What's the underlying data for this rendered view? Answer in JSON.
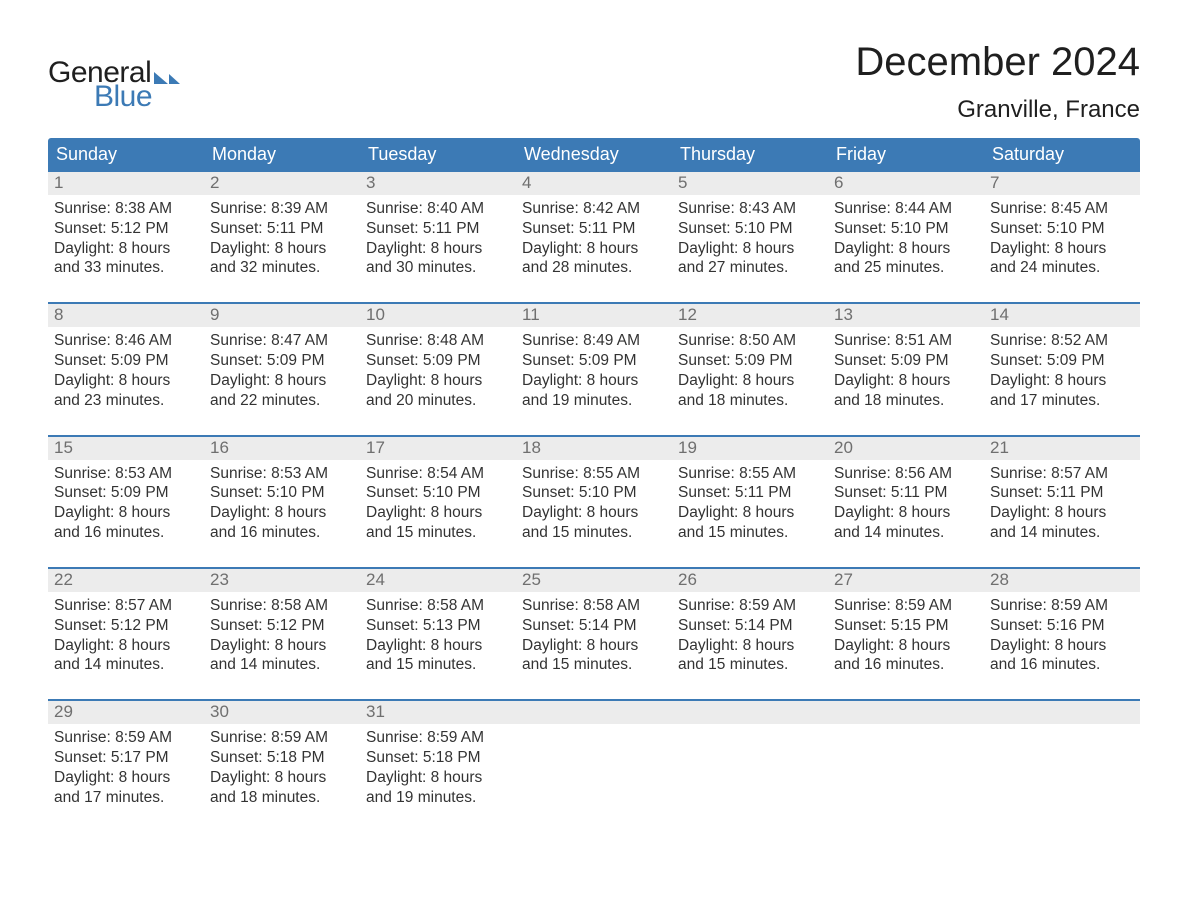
{
  "logo": {
    "text_general": "General",
    "text_blue": "Blue"
  },
  "title": "December 2024",
  "location": "Granville, France",
  "colors": {
    "header_bg": "#3c7ab5",
    "header_text": "#ffffff",
    "daynum_bg": "#ececec",
    "daynum_text": "#6f6f6f",
    "body_text": "#333333",
    "week_border": "#3c7ab5",
    "page_bg": "#ffffff",
    "logo_blue": "#3c7ab5",
    "logo_dark": "#1f1f1f"
  },
  "typography": {
    "title_fontsize": 40,
    "location_fontsize": 24,
    "dayhead_fontsize": 18,
    "daynum_fontsize": 17,
    "body_fontsize": 15.5,
    "logo_fontsize": 30,
    "font_family": "Arial"
  },
  "day_headers": [
    "Sunday",
    "Monday",
    "Tuesday",
    "Wednesday",
    "Thursday",
    "Friday",
    "Saturday"
  ],
  "weeks": [
    [
      {
        "n": "1",
        "sunrise": "Sunrise: 8:38 AM",
        "sunset": "Sunset: 5:12 PM",
        "d1": "Daylight: 8 hours",
        "d2": "and 33 minutes."
      },
      {
        "n": "2",
        "sunrise": "Sunrise: 8:39 AM",
        "sunset": "Sunset: 5:11 PM",
        "d1": "Daylight: 8 hours",
        "d2": "and 32 minutes."
      },
      {
        "n": "3",
        "sunrise": "Sunrise: 8:40 AM",
        "sunset": "Sunset: 5:11 PM",
        "d1": "Daylight: 8 hours",
        "d2": "and 30 minutes."
      },
      {
        "n": "4",
        "sunrise": "Sunrise: 8:42 AM",
        "sunset": "Sunset: 5:11 PM",
        "d1": "Daylight: 8 hours",
        "d2": "and 28 minutes."
      },
      {
        "n": "5",
        "sunrise": "Sunrise: 8:43 AM",
        "sunset": "Sunset: 5:10 PM",
        "d1": "Daylight: 8 hours",
        "d2": "and 27 minutes."
      },
      {
        "n": "6",
        "sunrise": "Sunrise: 8:44 AM",
        "sunset": "Sunset: 5:10 PM",
        "d1": "Daylight: 8 hours",
        "d2": "and 25 minutes."
      },
      {
        "n": "7",
        "sunrise": "Sunrise: 8:45 AM",
        "sunset": "Sunset: 5:10 PM",
        "d1": "Daylight: 8 hours",
        "d2": "and 24 minutes."
      }
    ],
    [
      {
        "n": "8",
        "sunrise": "Sunrise: 8:46 AM",
        "sunset": "Sunset: 5:09 PM",
        "d1": "Daylight: 8 hours",
        "d2": "and 23 minutes."
      },
      {
        "n": "9",
        "sunrise": "Sunrise: 8:47 AM",
        "sunset": "Sunset: 5:09 PM",
        "d1": "Daylight: 8 hours",
        "d2": "and 22 minutes."
      },
      {
        "n": "10",
        "sunrise": "Sunrise: 8:48 AM",
        "sunset": "Sunset: 5:09 PM",
        "d1": "Daylight: 8 hours",
        "d2": "and 20 minutes."
      },
      {
        "n": "11",
        "sunrise": "Sunrise: 8:49 AM",
        "sunset": "Sunset: 5:09 PM",
        "d1": "Daylight: 8 hours",
        "d2": "and 19 minutes."
      },
      {
        "n": "12",
        "sunrise": "Sunrise: 8:50 AM",
        "sunset": "Sunset: 5:09 PM",
        "d1": "Daylight: 8 hours",
        "d2": "and 18 minutes."
      },
      {
        "n": "13",
        "sunrise": "Sunrise: 8:51 AM",
        "sunset": "Sunset: 5:09 PM",
        "d1": "Daylight: 8 hours",
        "d2": "and 18 minutes."
      },
      {
        "n": "14",
        "sunrise": "Sunrise: 8:52 AM",
        "sunset": "Sunset: 5:09 PM",
        "d1": "Daylight: 8 hours",
        "d2": "and 17 minutes."
      }
    ],
    [
      {
        "n": "15",
        "sunrise": "Sunrise: 8:53 AM",
        "sunset": "Sunset: 5:09 PM",
        "d1": "Daylight: 8 hours",
        "d2": "and 16 minutes."
      },
      {
        "n": "16",
        "sunrise": "Sunrise: 8:53 AM",
        "sunset": "Sunset: 5:10 PM",
        "d1": "Daylight: 8 hours",
        "d2": "and 16 minutes."
      },
      {
        "n": "17",
        "sunrise": "Sunrise: 8:54 AM",
        "sunset": "Sunset: 5:10 PM",
        "d1": "Daylight: 8 hours",
        "d2": "and 15 minutes."
      },
      {
        "n": "18",
        "sunrise": "Sunrise: 8:55 AM",
        "sunset": "Sunset: 5:10 PM",
        "d1": "Daylight: 8 hours",
        "d2": "and 15 minutes."
      },
      {
        "n": "19",
        "sunrise": "Sunrise: 8:55 AM",
        "sunset": "Sunset: 5:11 PM",
        "d1": "Daylight: 8 hours",
        "d2": "and 15 minutes."
      },
      {
        "n": "20",
        "sunrise": "Sunrise: 8:56 AM",
        "sunset": "Sunset: 5:11 PM",
        "d1": "Daylight: 8 hours",
        "d2": "and 14 minutes."
      },
      {
        "n": "21",
        "sunrise": "Sunrise: 8:57 AM",
        "sunset": "Sunset: 5:11 PM",
        "d1": "Daylight: 8 hours",
        "d2": "and 14 minutes."
      }
    ],
    [
      {
        "n": "22",
        "sunrise": "Sunrise: 8:57 AM",
        "sunset": "Sunset: 5:12 PM",
        "d1": "Daylight: 8 hours",
        "d2": "and 14 minutes."
      },
      {
        "n": "23",
        "sunrise": "Sunrise: 8:58 AM",
        "sunset": "Sunset: 5:12 PM",
        "d1": "Daylight: 8 hours",
        "d2": "and 14 minutes."
      },
      {
        "n": "24",
        "sunrise": "Sunrise: 8:58 AM",
        "sunset": "Sunset: 5:13 PM",
        "d1": "Daylight: 8 hours",
        "d2": "and 15 minutes."
      },
      {
        "n": "25",
        "sunrise": "Sunrise: 8:58 AM",
        "sunset": "Sunset: 5:14 PM",
        "d1": "Daylight: 8 hours",
        "d2": "and 15 minutes."
      },
      {
        "n": "26",
        "sunrise": "Sunrise: 8:59 AM",
        "sunset": "Sunset: 5:14 PM",
        "d1": "Daylight: 8 hours",
        "d2": "and 15 minutes."
      },
      {
        "n": "27",
        "sunrise": "Sunrise: 8:59 AM",
        "sunset": "Sunset: 5:15 PM",
        "d1": "Daylight: 8 hours",
        "d2": "and 16 minutes."
      },
      {
        "n": "28",
        "sunrise": "Sunrise: 8:59 AM",
        "sunset": "Sunset: 5:16 PM",
        "d1": "Daylight: 8 hours",
        "d2": "and 16 minutes."
      }
    ],
    [
      {
        "n": "29",
        "sunrise": "Sunrise: 8:59 AM",
        "sunset": "Sunset: 5:17 PM",
        "d1": "Daylight: 8 hours",
        "d2": "and 17 minutes."
      },
      {
        "n": "30",
        "sunrise": "Sunrise: 8:59 AM",
        "sunset": "Sunset: 5:18 PM",
        "d1": "Daylight: 8 hours",
        "d2": "and 18 minutes."
      },
      {
        "n": "31",
        "sunrise": "Sunrise: 8:59 AM",
        "sunset": "Sunset: 5:18 PM",
        "d1": "Daylight: 8 hours",
        "d2": "and 19 minutes."
      },
      null,
      null,
      null,
      null
    ]
  ]
}
